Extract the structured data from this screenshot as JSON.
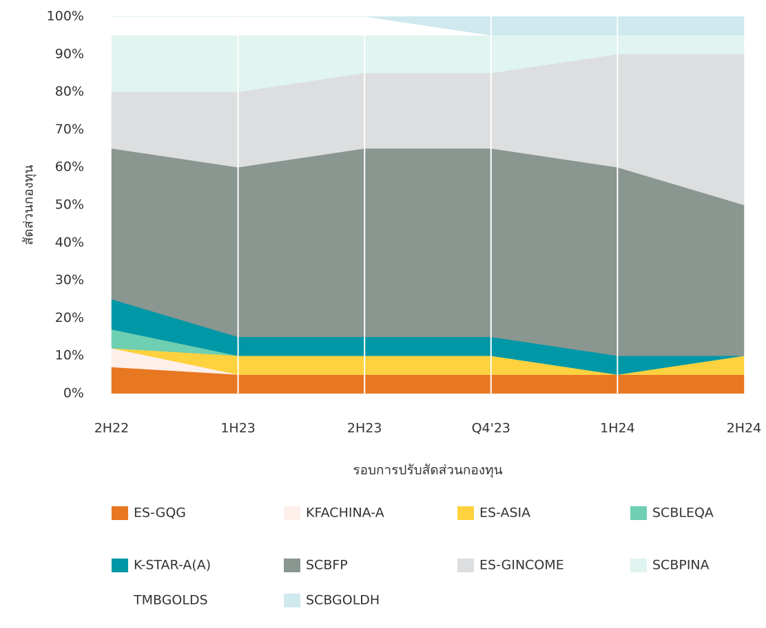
{
  "chart_data": {
    "type": "stacked-area",
    "x_label": "รอบการปรับสัดส่วนกองทุน",
    "y_label": "สัดส่วนกองทุน",
    "categories": [
      "2H22",
      "1H23",
      "2H23",
      "Q4'23",
      "1H24",
      "2H24"
    ],
    "ylim": [
      0,
      100
    ],
    "yticks": [
      {
        "value": 0,
        "label": "0%"
      },
      {
        "value": 10,
        "label": "10%"
      },
      {
        "value": 20,
        "label": "20%"
      },
      {
        "value": 30,
        "label": "30%"
      },
      {
        "value": 40,
        "label": "40%"
      },
      {
        "value": 50,
        "label": "50%"
      },
      {
        "value": 60,
        "label": "60%"
      },
      {
        "value": 70,
        "label": "70%"
      },
      {
        "value": 80,
        "label": "80%"
      },
      {
        "value": 90,
        "label": "90%"
      },
      {
        "value": 100,
        "label": "100%"
      }
    ],
    "series": [
      {
        "name": "ES-GQG",
        "color": "#e87722",
        "values": [
          7,
          5,
          5,
          5,
          5,
          5
        ]
      },
      {
        "name": "KFACHINA-A",
        "color": "#fdefe9",
        "values": [
          5,
          0,
          0,
          0,
          0,
          0
        ]
      },
      {
        "name": "ES-ASIA",
        "color": "#fdd23e",
        "values": [
          0,
          5,
          5,
          5,
          0,
          5
        ]
      },
      {
        "name": "SCBLEQA",
        "color": "#6fcfb2",
        "values": [
          5,
          0,
          0,
          0,
          0,
          0
        ]
      },
      {
        "name": "K-STAR-A(A)",
        "color": "#0097a7",
        "values": [
          8,
          5,
          5,
          5,
          5,
          0
        ]
      },
      {
        "name": "SCBFP",
        "color": "#8a9690",
        "values": [
          40,
          45,
          50,
          50,
          50,
          40
        ]
      },
      {
        "name": "ES-GINCOME",
        "color": "#dcdedf",
        "values": [
          15,
          20,
          20,
          20,
          30,
          40
        ]
      },
      {
        "name": "SCBPINA",
        "color": "#e0f4f0",
        "values": [
          15,
          15,
          10,
          10,
          5,
          5
        ]
      },
      {
        "name": "TMBGOLDS",
        "color": "#ffffff",
        "values": [
          5,
          5,
          5,
          0,
          0,
          0
        ]
      },
      {
        "name": "SCBGOLDH",
        "color": "#cfe9ee",
        "values": [
          0,
          0,
          0,
          5,
          5,
          5
        ]
      }
    ]
  }
}
